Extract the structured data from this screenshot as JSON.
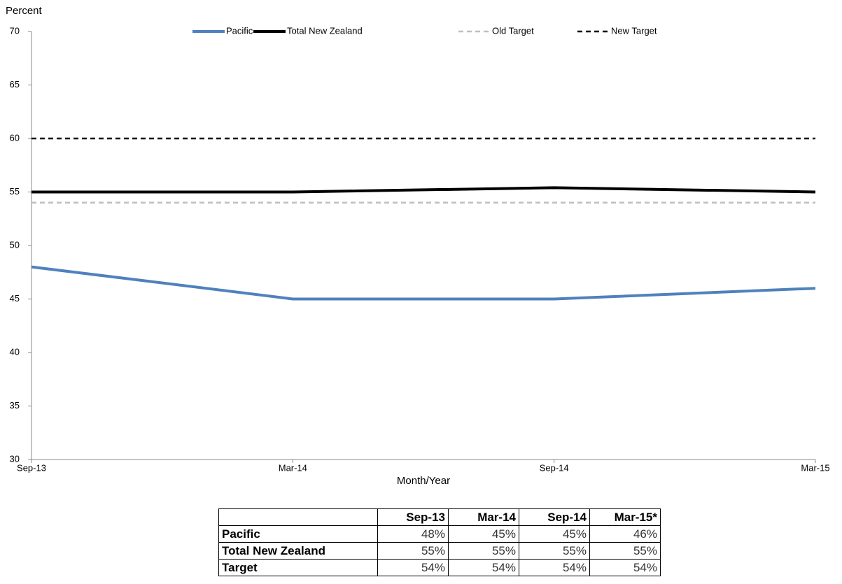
{
  "chart_data": {
    "type": "line",
    "y_label": "Percent",
    "x_label": "Month/Year",
    "categories": [
      "Sep-13",
      "Mar-14",
      "Sep-14",
      "Mar-15"
    ],
    "series": [
      {
        "name": "Pacific",
        "color": "#4f81bd",
        "dashed": false,
        "values": [
          48,
          45,
          45,
          46
        ]
      },
      {
        "name": "Total New Zealand",
        "color": "#000000",
        "dashed": false,
        "values": [
          55,
          55,
          55.4,
          55
        ]
      },
      {
        "name": "Old Target",
        "color": "#bfbfbf",
        "dashed": true,
        "values": [
          54,
          54,
          54,
          54
        ]
      },
      {
        "name": "New Target",
        "color": "#000000",
        "dashed": true,
        "values": [
          60,
          60,
          60,
          60
        ]
      }
    ],
    "ylim": [
      30,
      70
    ],
    "yticks": [
      30,
      35,
      40,
      45,
      50,
      55,
      60,
      65,
      70
    ],
    "grid": false,
    "legend": "top"
  },
  "table": {
    "header": [
      "Sep-13",
      "Mar-14",
      "Sep-14",
      "Mar-15*"
    ],
    "rows": [
      [
        "Pacific",
        "48%",
        "45%",
        "45%",
        "46%"
      ],
      [
        "Total New Zealand",
        "55%",
        "55%",
        "55%",
        "55%"
      ],
      [
        "Target",
        "54%",
        "54%",
        "54%",
        "54%"
      ]
    ]
  }
}
